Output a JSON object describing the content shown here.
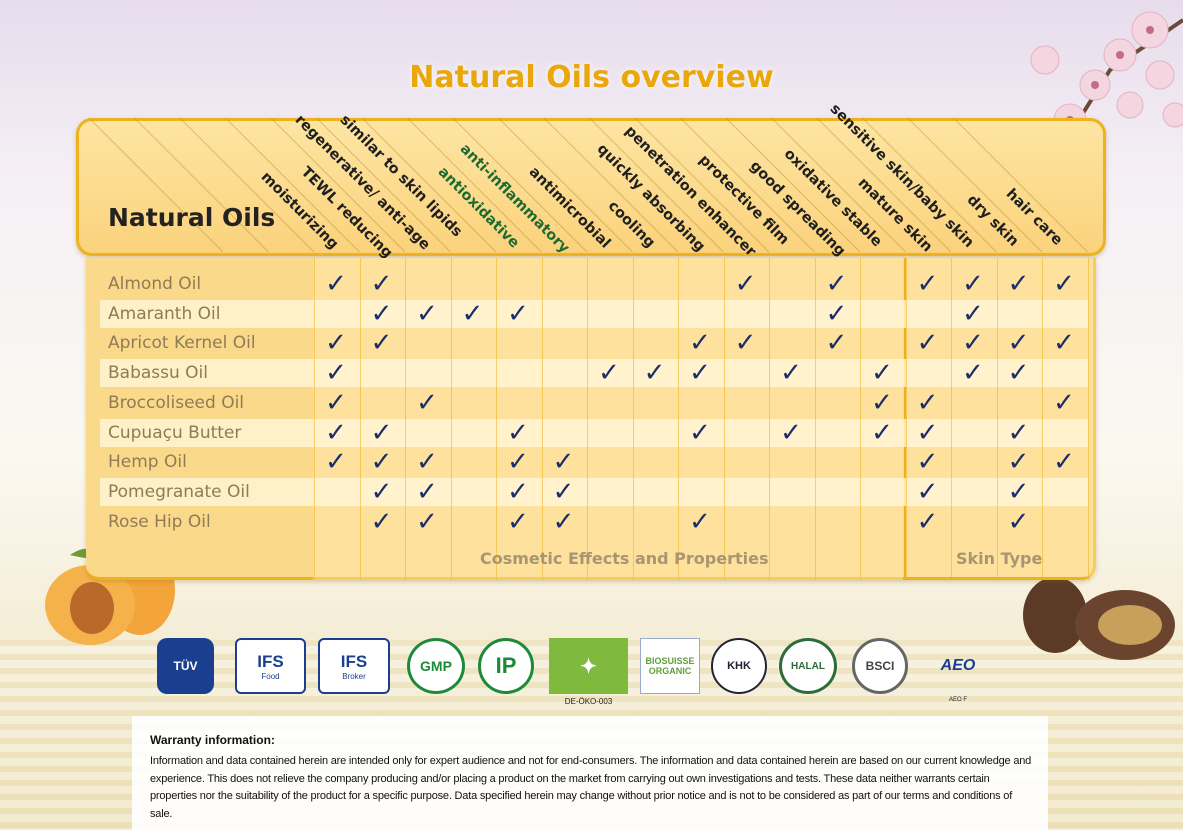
{
  "title": "Natural Oils overview",
  "header_title": "Natural Oils",
  "columns": [
    {
      "label": "moisturizing",
      "color": "#1f1f1f"
    },
    {
      "label": "TEWL reducing",
      "color": "#1f1f1f"
    },
    {
      "label": "regenerative/ anti-age",
      "color": "#1f1f1f"
    },
    {
      "label": "similar to skin lipids",
      "color": "#1f1f1f"
    },
    {
      "label": "antioxidative",
      "color": "#1d6b32"
    },
    {
      "label": "anti-inflammatory",
      "color": "#1d6b32"
    },
    {
      "label": "antimicrobial",
      "color": "#1f1f1f"
    },
    {
      "label": "cooling",
      "color": "#1f1f1f"
    },
    {
      "label": "quickly absorbing",
      "color": "#1f1f1f"
    },
    {
      "label": "penetration enhancer",
      "color": "#1f1f1f"
    },
    {
      "label": "protective film",
      "color": "#1f1f1f"
    },
    {
      "label": "good spreading",
      "color": "#1f1f1f"
    },
    {
      "label": "oxidative stable",
      "color": "#1f1f1f"
    },
    {
      "label": "mature skin",
      "color": "#1f1f1f"
    },
    {
      "label": "sensitive skin/baby skin",
      "color": "#1f1f1f"
    },
    {
      "label": "dry skin",
      "color": "#1f1f1f"
    },
    {
      "label": "hair care",
      "color": "#1f1f1f"
    }
  ],
  "rows": [
    {
      "name": "Almond Oil",
      "checks": [
        0,
        1,
        9,
        11,
        13,
        14,
        15,
        16
      ]
    },
    {
      "name": "Amaranth Oil",
      "checks": [
        1,
        2,
        3,
        4,
        11,
        14
      ]
    },
    {
      "name": "Apricot Kernel Oil",
      "checks": [
        0,
        1,
        8,
        9,
        11,
        13,
        14,
        15,
        16
      ]
    },
    {
      "name": "Babassu Oil",
      "checks": [
        0,
        6,
        7,
        8,
        10,
        12,
        14,
        15
      ]
    },
    {
      "name": "Broccoliseed Oil",
      "checks": [
        0,
        2,
        12,
        13,
        16
      ]
    },
    {
      "name": "Cupuaçu Butter",
      "checks": [
        0,
        1,
        4,
        8,
        10,
        12,
        13,
        15
      ]
    },
    {
      "name": "Hemp Oil",
      "checks": [
        0,
        1,
        2,
        4,
        5,
        13,
        15,
        16
      ]
    },
    {
      "name": "Pomegranate Oil",
      "checks": [
        1,
        2,
        4,
        5,
        13,
        15
      ]
    },
    {
      "name": "Rose Hip Oil",
      "checks": [
        1,
        2,
        4,
        5,
        8,
        13,
        15
      ]
    }
  ],
  "check_symbol": "✓",
  "footer_cosmetic": "Cosmetic Effects and Properties",
  "footer_skin": "Skin Type",
  "logos": {
    "tuv": "TÜV",
    "ifs_food": "IFS",
    "ifs_food_sub": "Food",
    "ifs_broker": "IFS",
    "ifs_broker_sub": "Broker",
    "gmp": "GMP",
    "ip": "IP",
    "eu_organic": "✦",
    "eu_code": "DE-ÖKO-003",
    "biosuisse": "BIOSUISSE",
    "biosuisse_sub": "ORGANIC",
    "khk": "KHK",
    "halal": "HALAL",
    "bsci": "BSCI",
    "aeo": "AEO",
    "aeo_code": "AEO F"
  },
  "warranty": {
    "title": "Warranty information:",
    "text": "Information and data contained herein are intended only for expert audience and not for end-consumers. The information and data contained herein are based on our current knowledge and experience. This does not relieve the company producing and/or placing a product on the market from carrying out own investigations and tests. These data neither warrants certain properties nor the suitability of the product for a specific purpose. Data specified herein may change without prior notice and is not to be considered as part of our terms and conditions of sale."
  }
}
